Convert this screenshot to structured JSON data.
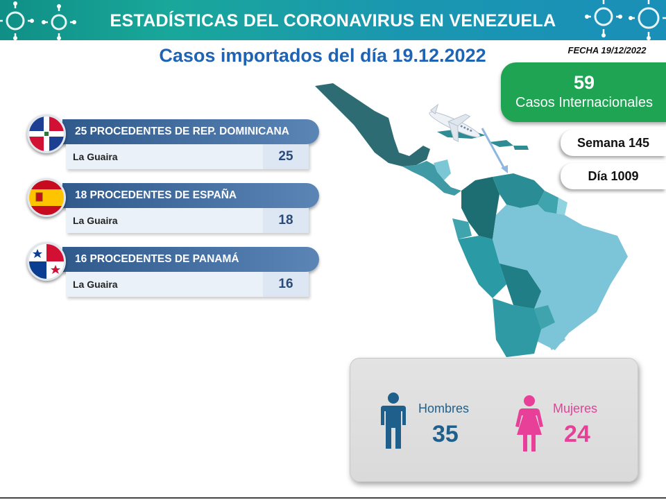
{
  "header": {
    "title": "ESTADÍSTICAS DEL CORONAVIRUS EN VENEZUELA"
  },
  "subtitle": "Casos importados del día 19.12.2022",
  "fecha": "FECHA 19/12/2022",
  "summary": {
    "casos_value": "59",
    "casos_label": "Casos Internacionales",
    "semana": "Semana 145",
    "dia": "Día 1009"
  },
  "rows": [
    {
      "title": "25 PROCEDENTES DE REP. DOMINICANA",
      "place": "La Guaira",
      "value": "25",
      "flag": "dominican-republic-flag"
    },
    {
      "title": "18 PROCEDENTES DE ESPAÑA",
      "place": "La Guaira",
      "value": "18",
      "flag": "spain-flag"
    },
    {
      "title": "16 PROCEDENTES DE PANAMÁ",
      "place": "La Guaira",
      "value": "16",
      "flag": "panama-flag"
    }
  ],
  "gender": {
    "men_label": "Hombres",
    "men_value": "35",
    "women_label": "Mujeres",
    "women_value": "24"
  },
  "colors": {
    "banner": "#19a79a",
    "subtitle": "#1f64b4",
    "green": "#1fa454",
    "row_header": "#4a74a6",
    "men": "#1f5f8b",
    "women": "#e83f98"
  },
  "icons": [
    "virus-icon",
    "airplane-icon",
    "man-icon",
    "woman-icon",
    "latin-america-map"
  ]
}
